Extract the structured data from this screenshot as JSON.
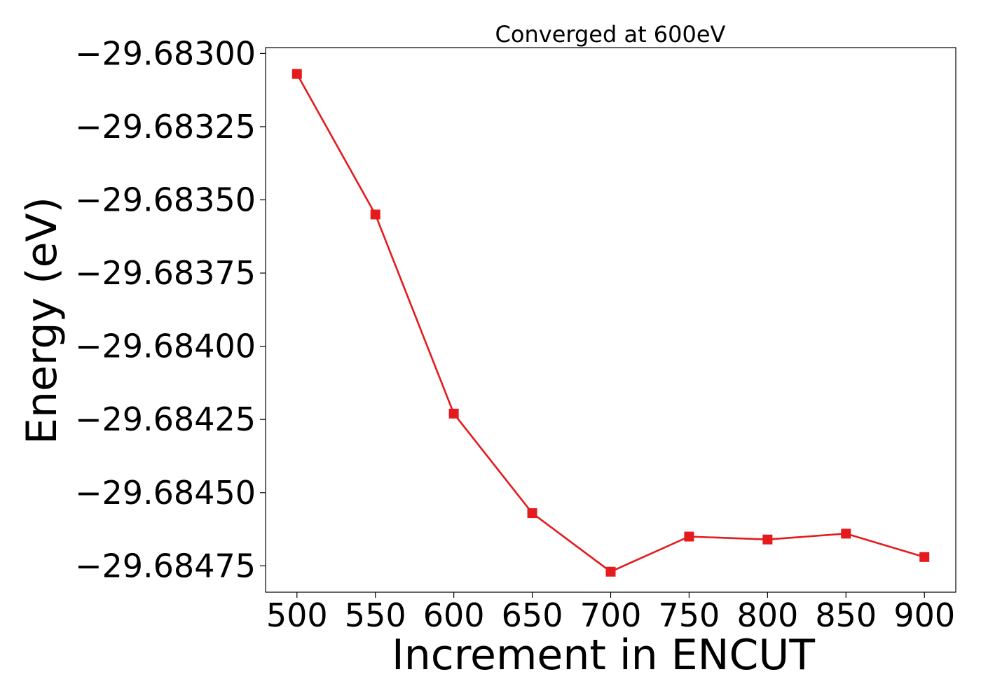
{
  "chart_data": {
    "type": "line",
    "title": "Converged at 600eV",
    "xlabel": "Increment in ENCUT",
    "ylabel": "Energy (eV)",
    "x": [
      500,
      550,
      600,
      650,
      700,
      750,
      800,
      850,
      900
    ],
    "series": [
      {
        "values": [
          -29.68307,
          -29.68355,
          -29.68423,
          -29.68457,
          -29.68477,
          -29.68465,
          -29.68466,
          -29.68464,
          -29.68472
        ],
        "color": "#e41a1c",
        "marker": "square"
      }
    ],
    "xticks": [
      500,
      550,
      600,
      650,
      700,
      750,
      800,
      850,
      900
    ],
    "xtick_labels": [
      "500",
      "550",
      "600",
      "650",
      "700",
      "750",
      "800",
      "850",
      "900"
    ],
    "yticks": [
      -29.683,
      -29.68325,
      -29.6835,
      -29.68375,
      -29.684,
      -29.68425,
      -29.6845,
      -29.68475
    ],
    "ytick_labels": [
      "−29.68300",
      "−29.68325",
      "−29.68350",
      "−29.68375",
      "−29.68400",
      "−29.68425",
      "−29.68450",
      "−29.68475"
    ],
    "xlim": [
      480,
      920
    ],
    "ylim": [
      -29.68484,
      -29.68298
    ],
    "grid": false,
    "legend": "none"
  }
}
